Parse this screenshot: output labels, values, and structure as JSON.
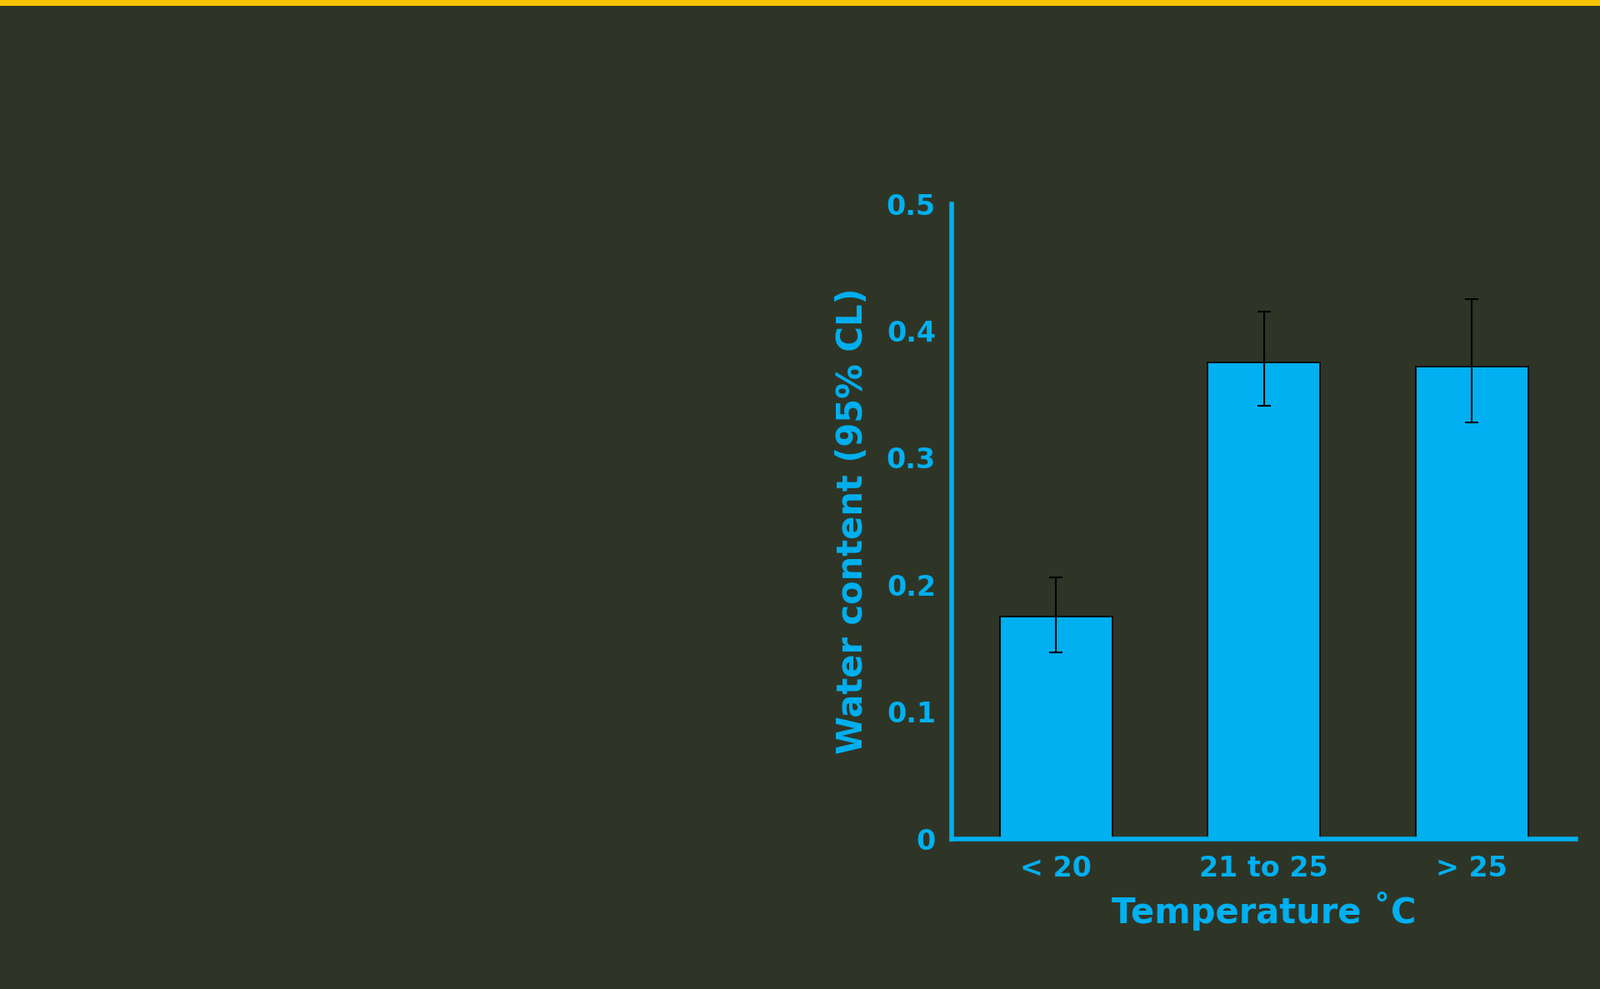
{
  "chart_data": {
    "type": "bar",
    "categories": [
      "< 20",
      "21 to 25",
      "> 25"
    ],
    "values": [
      0.175,
      0.375,
      0.372
    ],
    "error_lower": [
      0.147,
      0.341,
      0.328
    ],
    "error_upper": [
      0.206,
      0.415,
      0.425
    ],
    "color": "#00b0f0",
    "x_label": "Temperature ˚C",
    "y_label": "Water content (95% CL)",
    "ylim": [
      0,
      0.5
    ],
    "yticks": [
      0,
      0.1,
      0.2,
      0.3,
      0.4,
      0.5
    ],
    "grid": false
  }
}
